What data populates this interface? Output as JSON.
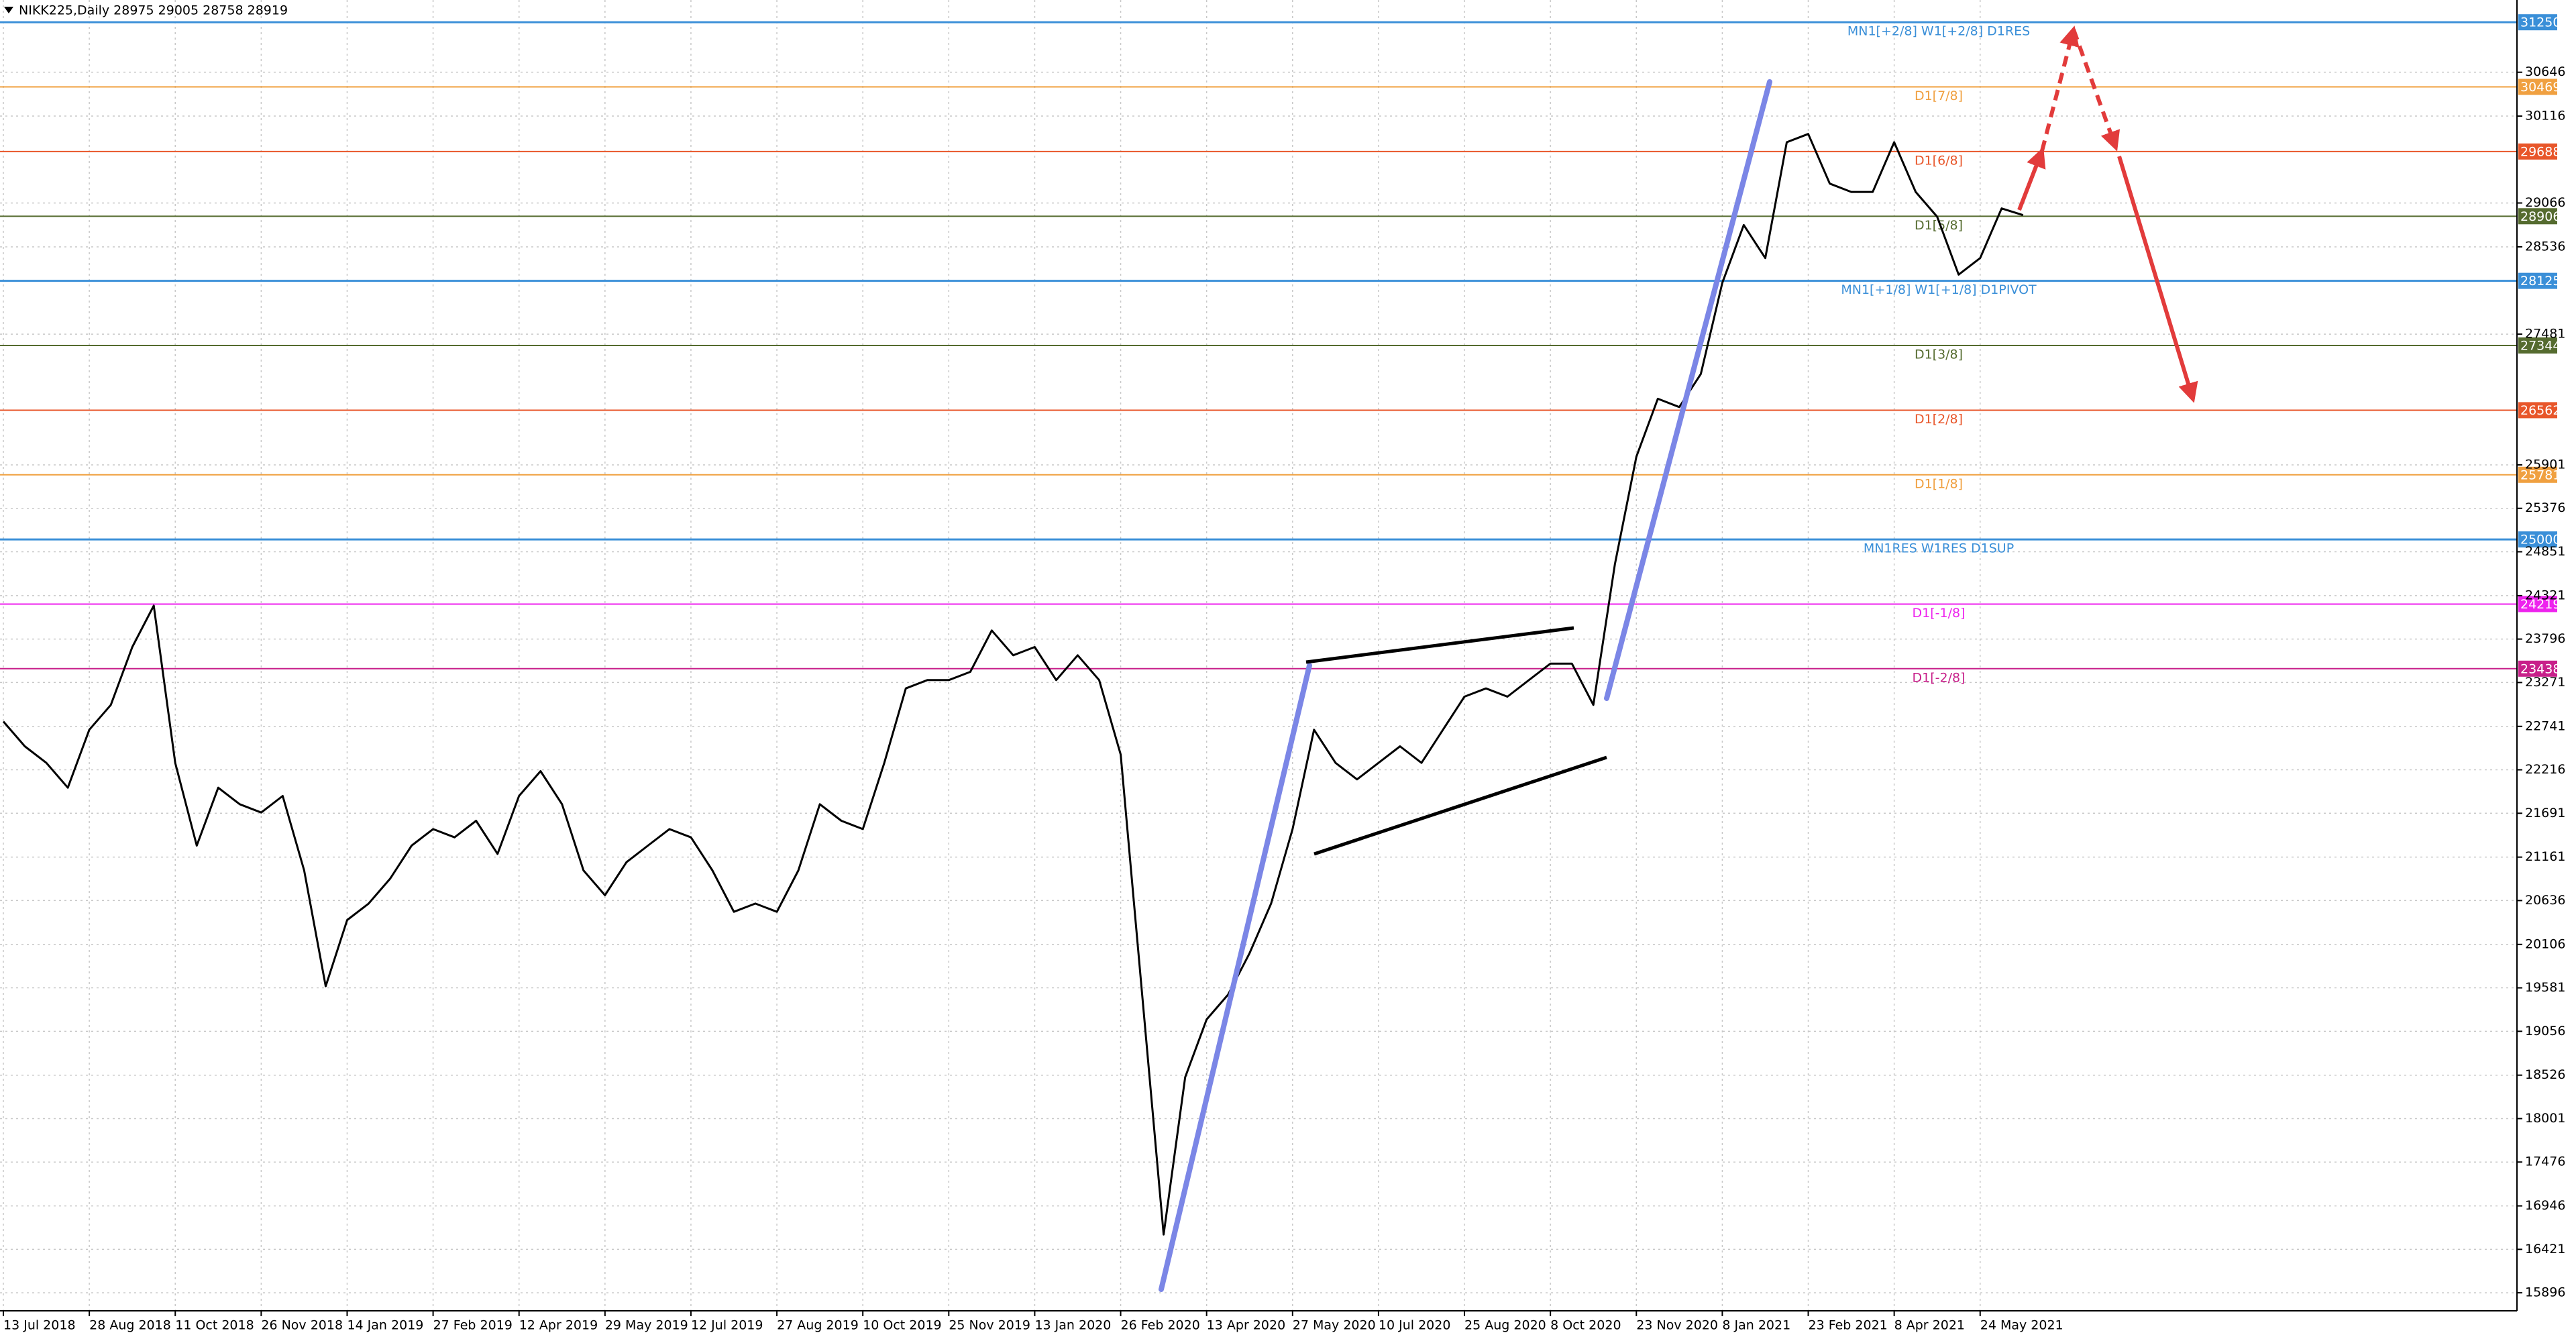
{
  "chart_data": {
    "type": "line",
    "title": "NIKK225,Daily  28975 29005 28758 28919",
    "color": "#000000",
    "grid": true,
    "categories": [
      "13 Jul 2018",
      null,
      null,
      null,
      "28 Aug 2018",
      null,
      null,
      null,
      "11 Oct 2018",
      null,
      null,
      null,
      "26 Nov 2018",
      null,
      null,
      null,
      "14 Jan 2019",
      null,
      null,
      null,
      "27 Feb 2019",
      null,
      null,
      null,
      "12 Apr 2019",
      null,
      null,
      null,
      "29 May 2019",
      null,
      null,
      null,
      "12 Jul 2019",
      null,
      null,
      null,
      "27 Aug 2019",
      null,
      null,
      null,
      "10 Oct 2019",
      null,
      null,
      null,
      "25 Nov 2019",
      null,
      null,
      null,
      "13 Jan 2020",
      null,
      null,
      null,
      "26 Feb 2020",
      null,
      null,
      null,
      "13 Apr 2020",
      null,
      null,
      null,
      "27 May 2020",
      null,
      null,
      null,
      "10 Jul 2020",
      null,
      null,
      null,
      "25 Aug 2020",
      null,
      null,
      null,
      "8 Oct 2020",
      null,
      null,
      null,
      "23 Nov 2020",
      null,
      null,
      null,
      "8 Jan 2021",
      null,
      null,
      null,
      "23 Feb 2021",
      null,
      null,
      null,
      "8 Apr 2021",
      null,
      null,
      null,
      "24 May 2021",
      null,
      null
    ],
    "values": [
      22800,
      22500,
      22300,
      22000,
      22700,
      23000,
      23700,
      24200,
      22300,
      21300,
      22000,
      21800,
      21700,
      21900,
      21000,
      19600,
      20400,
      20600,
      20900,
      21300,
      21500,
      21400,
      21600,
      21200,
      21900,
      22200,
      21800,
      21000,
      20700,
      21100,
      21300,
      21500,
      21400,
      21000,
      20500,
      20600,
      20500,
      21000,
      21800,
      21600,
      21500,
      22300,
      23200,
      23300,
      23300,
      23400,
      23900,
      23600,
      23700,
      23300,
      23600,
      23300,
      22400,
      19500,
      16600,
      18500,
      19200,
      19500,
      20000,
      20600,
      21500,
      22700,
      22300,
      22100,
      22300,
      22500,
      22300,
      22700,
      23100,
      23200,
      23100,
      23300,
      23500,
      23500,
      23000,
      24700,
      26000,
      26700,
      26600,
      27000,
      28100,
      28800,
      28400,
      29800,
      29900,
      29300,
      29200,
      29200,
      29800,
      29200,
      28900,
      28200,
      28400,
      29000,
      28919
    ],
    "ylim": [
      15678,
      31519
    ],
    "yticks": [
      30646,
      30116,
      29066,
      28536,
      27481,
      25901,
      25376,
      24851,
      24321,
      23796,
      23271,
      22741,
      22216,
      21691,
      21161,
      20636,
      20106,
      19581,
      19056,
      18526,
      18001,
      17476,
      16946,
      16421,
      15896
    ],
    "levels": [
      {
        "value": 31250,
        "label": "MN1[+2/8] W1[+2/8] D1RES",
        "color": "#3a8fd8"
      },
      {
        "value": 30469,
        "label": "D1[7/8]",
        "color": "#f0a040"
      },
      {
        "value": 29688,
        "label": "D1[6/8]",
        "color": "#e8562a"
      },
      {
        "value": 28906,
        "label": "D1[5/8]",
        "color": "#556b2f"
      },
      {
        "value": 28125,
        "label": "MN1[+1/8] W1[+1/8] D1PIVOT",
        "color": "#3a8fd8"
      },
      {
        "value": 27344,
        "label": "D1[3/8]",
        "color": "#556b2f"
      },
      {
        "value": 26562,
        "label": "D1[2/8]",
        "color": "#e8562a"
      },
      {
        "value": 25781,
        "label": "D1[1/8]",
        "color": "#f0a040"
      },
      {
        "value": 25000,
        "label": "MN1RES W1RES D1SUP",
        "color": "#3a8fd8"
      },
      {
        "value": 24219,
        "label": "D1[-1/8]",
        "color": "#ee22ee"
      },
      {
        "value": 23438,
        "label": "D1[-2/8]",
        "color": "#c8208a"
      }
    ]
  }
}
